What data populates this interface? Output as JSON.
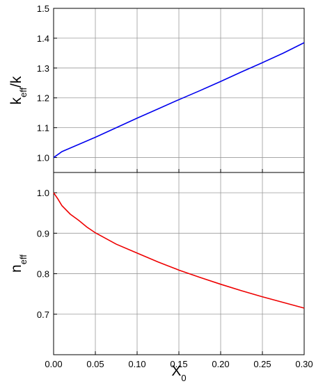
{
  "chart_data": [
    {
      "type": "line",
      "ylabel": {
        "base": "k",
        "sub": "eff",
        "rest": "/k"
      },
      "x": [
        0,
        0.01,
        0.025,
        0.05,
        0.075,
        0.1,
        0.125,
        0.15,
        0.175,
        0.2,
        0.225,
        0.25,
        0.275,
        0.3
      ],
      "series": [
        {
          "color": "#0000ee",
          "values": [
            1.0,
            1.02,
            1.038,
            1.068,
            1.1,
            1.132,
            1.163,
            1.194,
            1.224,
            1.255,
            1.287,
            1.318,
            1.35,
            1.385
          ]
        }
      ],
      "xlim": [
        0,
        0.3
      ],
      "xticks": [
        0,
        0.05,
        0.1,
        0.15,
        0.2,
        0.25,
        0.3
      ],
      "show_xtick_labels": false,
      "ylim": [
        0.95,
        1.5
      ],
      "yticks": [
        {
          "value": 1,
          "label": "1.0"
        },
        1.1,
        1.2,
        1.3,
        1.4,
        1.5
      ],
      "grid": true
    },
    {
      "type": "line",
      "ylabel": {
        "base": "n",
        "sub": "eff"
      },
      "xlabel": {
        "base": "X",
        "sub": "0"
      },
      "x": [
        0,
        0.005,
        0.01,
        0.02,
        0.03,
        0.04,
        0.05,
        0.075,
        0.1,
        0.125,
        0.15,
        0.175,
        0.2,
        0.225,
        0.25,
        0.275,
        0.3
      ],
      "series": [
        {
          "color": "#ee0000",
          "values": [
            1.0,
            0.985,
            0.968,
            0.947,
            0.932,
            0.915,
            0.901,
            0.873,
            0.851,
            0.829,
            0.809,
            0.791,
            0.774,
            0.758,
            0.743,
            0.729,
            0.715
          ]
        }
      ],
      "xlim": [
        0,
        0.3
      ],
      "xticks": [
        {
          "value": 0,
          "label": "0.00"
        },
        {
          "value": 0.05,
          "label": "0.05"
        },
        {
          "value": 0.1,
          "label": "0.10"
        },
        {
          "value": 0.15,
          "label": "0.15"
        },
        {
          "value": 0.2,
          "label": "0.20"
        },
        {
          "value": 0.25,
          "label": "0.25"
        },
        {
          "value": 0.3,
          "label": "0.30"
        }
      ],
      "show_xtick_labels": true,
      "ylim": [
        0.6,
        1.05
      ],
      "yticks": [
        0.7,
        0.8,
        0.9,
        {
          "value": 1,
          "label": "1.0"
        }
      ],
      "grid": true
    }
  ]
}
